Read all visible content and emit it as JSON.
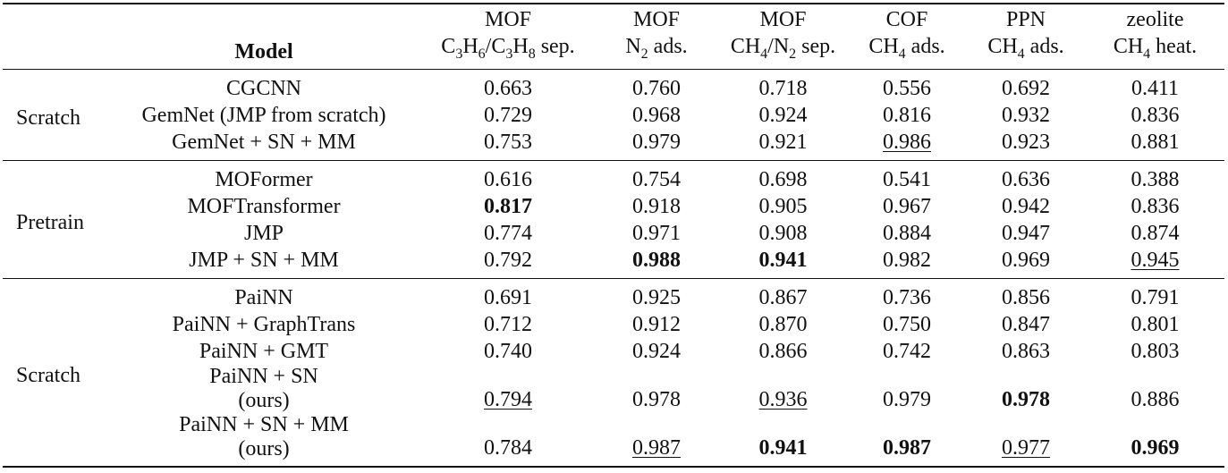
{
  "columns": {
    "model": "Model",
    "c1_top": "MOF",
    "c1_bot": "C3H6/C3H8 sep.",
    "c2_top": "MOF",
    "c2_bot": "N2 ads.",
    "c3_top": "MOF",
    "c3_bot": "CH4/N2 sep.",
    "c4_top": "COF",
    "c4_bot": "CH4 ads.",
    "c5_top": "PPN",
    "c5_bot": "CH4 ads.",
    "c6_top": "zeolite",
    "c6_bot": "CH4 heat."
  },
  "groups": [
    {
      "label": "Scratch",
      "rows": [
        {
          "model": "CGCNN",
          "v": [
            "0.663",
            "0.760",
            "0.718",
            "0.556",
            "0.692",
            "0.411"
          ]
        },
        {
          "model": "GemNet (JMP from scratch)",
          "v": [
            "0.729",
            "0.968",
            "0.924",
            "0.816",
            "0.932",
            "0.836"
          ]
        },
        {
          "model": "GemNet + SN + MM",
          "v": [
            "0.753",
            "0.979",
            "0.921",
            "0.986",
            "0.923",
            "0.881"
          ]
        }
      ]
    },
    {
      "label": "Pretrain",
      "rows": [
        {
          "model": "MOFormer",
          "v": [
            "0.616",
            "0.754",
            "0.698",
            "0.541",
            "0.636",
            "0.388"
          ]
        },
        {
          "model": "MOFTransformer",
          "v": [
            "0.817",
            "0.918",
            "0.905",
            "0.967",
            "0.942",
            "0.836"
          ]
        },
        {
          "model": "JMP",
          "v": [
            "0.774",
            "0.971",
            "0.908",
            "0.884",
            "0.947",
            "0.874"
          ]
        },
        {
          "model": "JMP + SN + MM",
          "v": [
            "0.792",
            "0.988",
            "0.941",
            "0.982",
            "0.969",
            "0.945"
          ]
        }
      ]
    },
    {
      "label": "Scratch",
      "rows": [
        {
          "model": "PaiNN",
          "v": [
            "0.691",
            "0.925",
            "0.867",
            "0.736",
            "0.856",
            "0.791"
          ]
        },
        {
          "model": "PaiNN + GraphTrans",
          "v": [
            "0.712",
            "0.912",
            "0.870",
            "0.750",
            "0.847",
            "0.801"
          ]
        },
        {
          "model": "PaiNN + GMT",
          "v": [
            "0.740",
            "0.924",
            "0.866",
            "0.742",
            "0.863",
            "0.803"
          ]
        },
        {
          "model": "PaiNN + SN",
          "model2": "(ours)",
          "v": [
            "0.794",
            "0.978",
            "0.936",
            "0.979",
            "0.978",
            "0.886"
          ]
        },
        {
          "model": "PaiNN + SN + MM",
          "model2": "(ours)",
          "v": [
            "0.784",
            "0.987",
            "0.941",
            "0.987",
            "0.977",
            "0.969"
          ]
        }
      ]
    }
  ]
}
